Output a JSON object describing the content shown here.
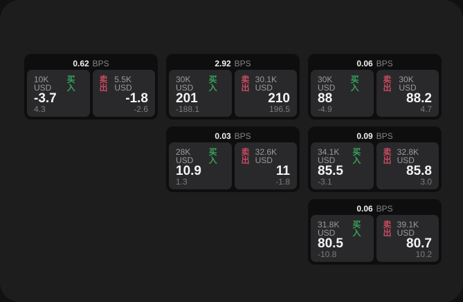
{
  "labels": {
    "buy": "买入",
    "sell": "卖出",
    "bps_unit": "BPS"
  },
  "colors": {
    "outer_bg": "#111112",
    "panel_bg": "#1d1d1e",
    "card_bg": "#0e0e0f",
    "tile_bg": "#29292b",
    "buy_green": "#36a35a",
    "sell_red": "#ca4a63",
    "label_gray": "#9b9b9f",
    "delta_gray": "#7c7c81",
    "value_white": "#f4f4f5"
  },
  "cards": [
    {
      "row": 1,
      "col": 1,
      "bps": "0.62",
      "buy": {
        "size": "10K USD",
        "price": "-3.7",
        "delta": "4.3"
      },
      "sell": {
        "size": "5.5K USD",
        "price": "-1.8",
        "delta": "-2.6"
      }
    },
    {
      "row": 1,
      "col": 2,
      "bps": "2.92",
      "buy": {
        "size": "30K USD",
        "price": "201",
        "delta": "-188.1"
      },
      "sell": {
        "size": "30.1K USD",
        "price": "210",
        "delta": "196.5"
      }
    },
    {
      "row": 1,
      "col": 3,
      "bps": "0.06",
      "buy": {
        "size": "30K USD",
        "price": "88",
        "delta": "-4.9"
      },
      "sell": {
        "size": "30K USD",
        "price": "88.2",
        "delta": "4.7"
      }
    },
    {
      "row": 2,
      "col": 2,
      "bps": "0.03",
      "buy": {
        "size": "28K USD",
        "price": "10.9",
        "delta": "1.3"
      },
      "sell": {
        "size": "32.6K USD",
        "price": "11",
        "delta": "-1.8"
      }
    },
    {
      "row": 2,
      "col": 3,
      "bps": "0.09",
      "buy": {
        "size": "34.1K USD",
        "price": "85.5",
        "delta": "-3.1"
      },
      "sell": {
        "size": "32.8K USD",
        "price": "85.8",
        "delta": "3.0"
      }
    },
    {
      "row": 3,
      "col": 3,
      "bps": "0.06",
      "buy": {
        "size": "31.8K USD",
        "price": "80.5",
        "delta": "-10.8"
      },
      "sell": {
        "size": "39.1K USD",
        "price": "80.7",
        "delta": "10.2"
      }
    }
  ]
}
